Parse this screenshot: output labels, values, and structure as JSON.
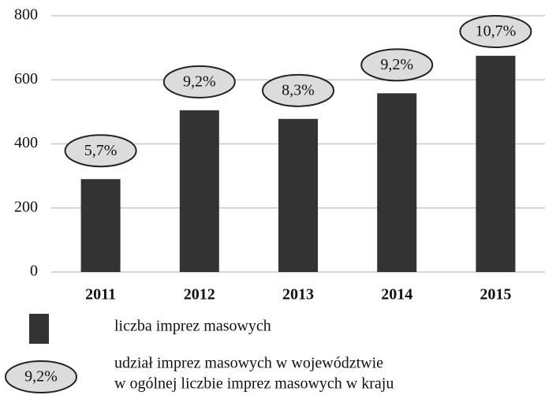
{
  "chart_data": {
    "type": "bar",
    "categories": [
      "2011",
      "2012",
      "2013",
      "2014",
      "2015"
    ],
    "series": [
      {
        "name": "liczba imprez masowych",
        "color": "#333333",
        "values": [
          290,
          505,
          478,
          558,
          675
        ]
      }
    ],
    "shares": [
      5.7,
      9.2,
      8.3,
      9.2,
      10.7
    ],
    "share_labels": [
      "5,7%",
      "9,2%",
      "8,3%",
      "9,2%",
      "10,7%"
    ],
    "share_legend": {
      "sample": "9,2%",
      "lines": [
        "udział imprez masowych w województwie",
        "w ogólnej liczbie imprez masowych w kraju"
      ]
    },
    "ylim": [
      0,
      800
    ],
    "yticks": [
      0,
      200,
      400,
      600,
      800
    ],
    "grid": true
  }
}
